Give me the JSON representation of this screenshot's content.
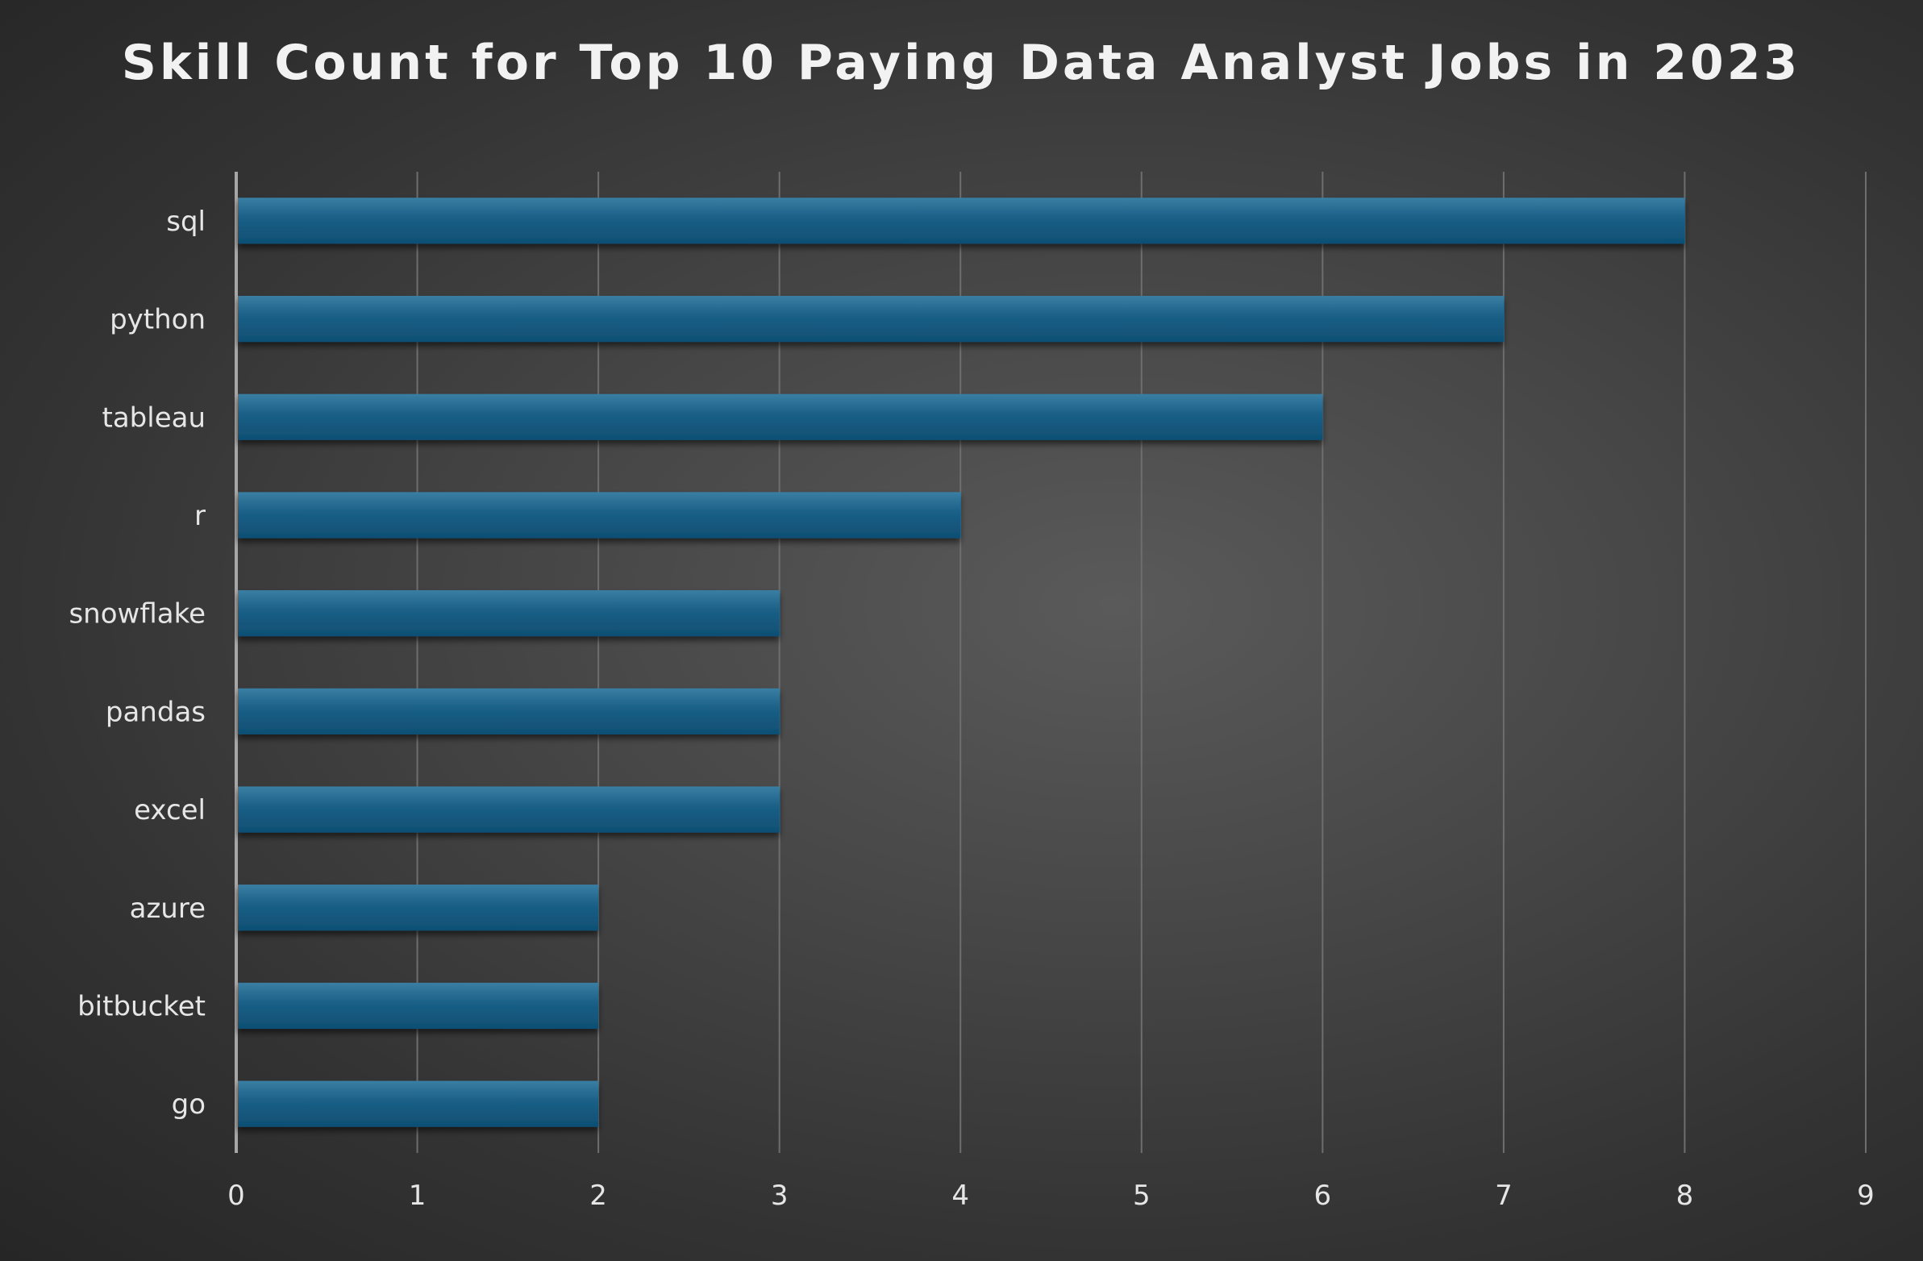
{
  "chart_data": {
    "type": "bar",
    "orientation": "horizontal",
    "title": "Skill Count for Top 10 Paying Data Analyst Jobs in 2023",
    "xlabel": "",
    "ylabel": "",
    "categories": [
      "sql",
      "python",
      "tableau",
      "r",
      "snowflake",
      "pandas",
      "excel",
      "azure",
      "bitbucket",
      "go"
    ],
    "values": [
      8,
      7,
      6,
      4,
      3,
      3,
      3,
      2,
      2,
      2
    ],
    "xlim": [
      0,
      9
    ],
    "x_ticks": [
      0,
      1,
      2,
      3,
      4,
      5,
      6,
      7,
      8,
      9
    ],
    "grid": true,
    "legend": "none",
    "colors": {
      "bar": "#1a5f86",
      "bar_top": "#3a7ea3",
      "bar_bottom": "#0f4f73",
      "grid": "#6e6e6e",
      "axis": "#a6a6a6",
      "text": "#e6e6e6",
      "title": "#f2f2f2"
    }
  }
}
